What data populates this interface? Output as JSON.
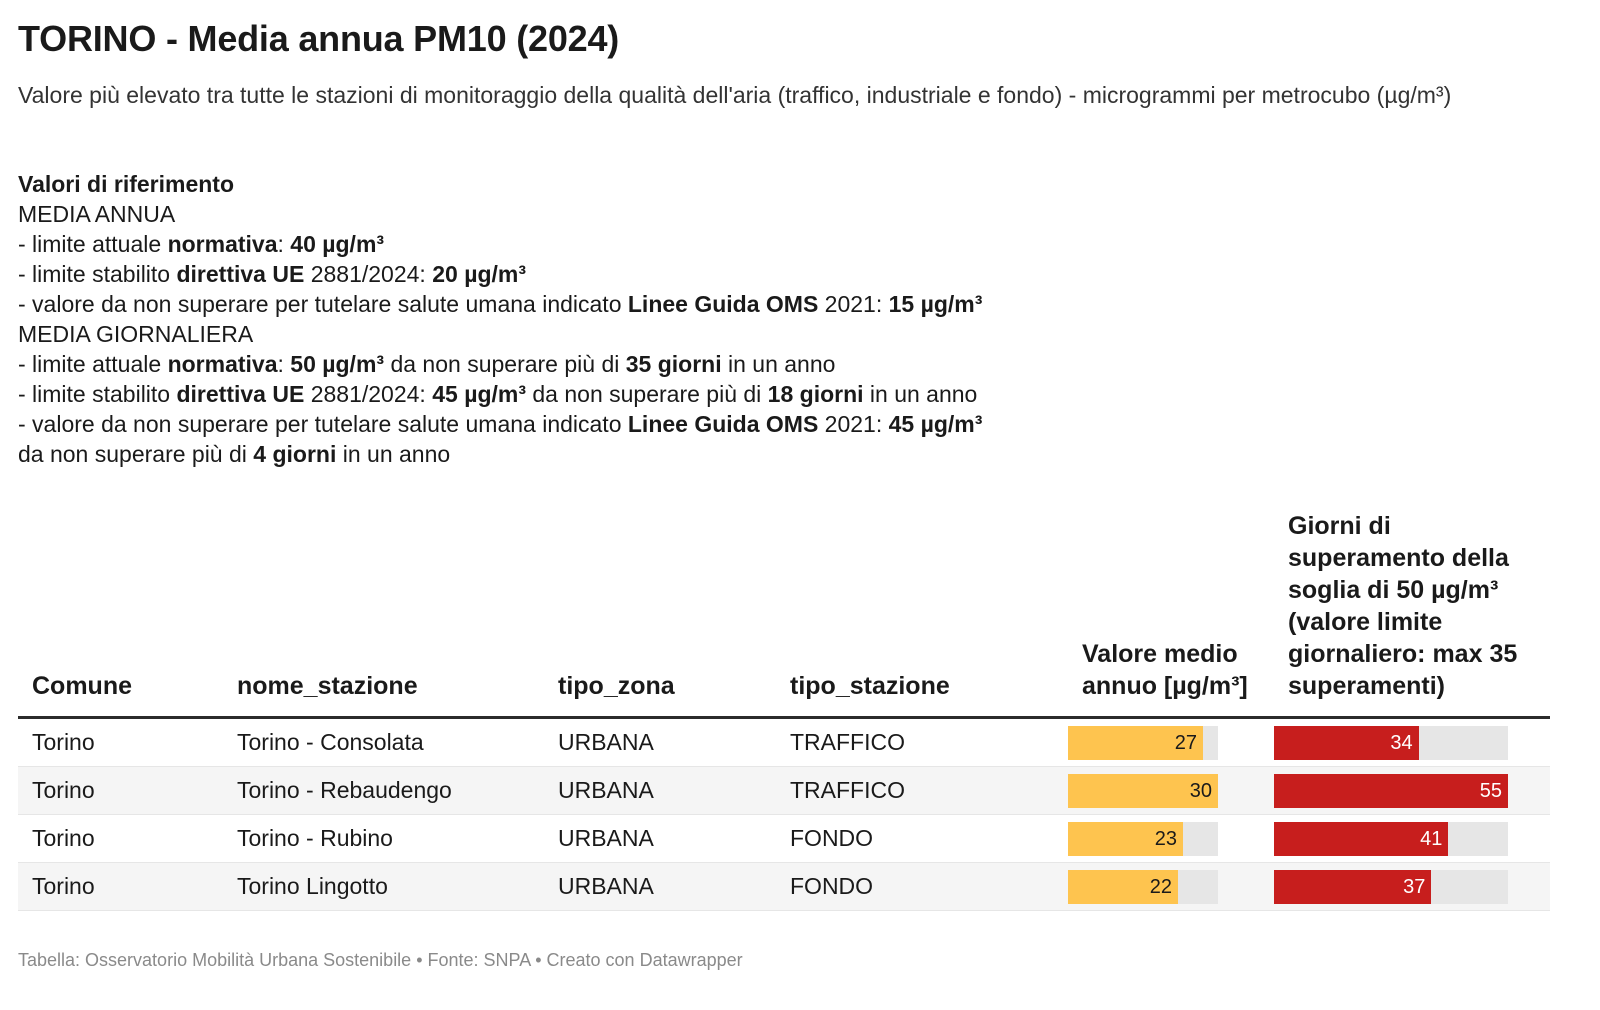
{
  "title": "TORINO - Media annua PM10 (2024)",
  "subtitle": "Valore più elevato tra tutte le stazioni di monitoraggio della qualità dell'aria (traffico, industriale e fondo) - microgrammi per metrocubo (µg/m³)",
  "reference": {
    "heading": "Valori di riferimento",
    "annual_heading": "MEDIA ANNUA",
    "annual_lines": [
      [
        {
          "t": "- limite attuale "
        },
        {
          "t": "normativa",
          "b": true
        },
        {
          "t": ": "
        },
        {
          "t": "40 µg/m³",
          "b": true
        }
      ],
      [
        {
          "t": "- limite stabilito "
        },
        {
          "t": "direttiva UE",
          "b": true
        },
        {
          "t": " 2881/2024: "
        },
        {
          "t": "20 µg/m³",
          "b": true
        }
      ],
      [
        {
          "t": "- valore da non superare per tutelare salute umana indicato "
        },
        {
          "t": "Linee Guida OMS",
          "b": true
        },
        {
          "t": " 2021: "
        },
        {
          "t": "15 µg/m³",
          "b": true
        }
      ]
    ],
    "daily_heading": "MEDIA GIORNALIERA",
    "daily_lines": [
      [
        {
          "t": "- limite attuale "
        },
        {
          "t": "normativa",
          "b": true
        },
        {
          "t": ": "
        },
        {
          "t": "50 µg/m³",
          "b": true
        },
        {
          "t": " da non superare più di "
        },
        {
          "t": "35 giorni",
          "b": true
        },
        {
          "t": " in un anno"
        }
      ],
      [
        {
          "t": "- limite stabilito "
        },
        {
          "t": "direttiva UE",
          "b": true
        },
        {
          "t": " 2881/2024: "
        },
        {
          "t": "45 µg/m³",
          "b": true
        },
        {
          "t": " da non superare più di "
        },
        {
          "t": "18 giorni",
          "b": true
        },
        {
          "t": " in un anno"
        }
      ],
      [
        {
          "t": "- valore da non superare per tutelare salute umana indicato "
        },
        {
          "t": "Linee Guida OMS",
          "b": true
        },
        {
          "t": " 2021: "
        },
        {
          "t": "45 µg/m³",
          "b": true
        }
      ],
      [
        {
          "t": "da non superare più di "
        },
        {
          "t": "4 giorni",
          "b": true
        },
        {
          "t": " in un anno"
        }
      ]
    ]
  },
  "colors": {
    "yellow_bar": "#fec44f",
    "red_bar": "#c71e1d",
    "track": "#e6e6e6"
  },
  "chart_data": {
    "type": "table",
    "columns": [
      "Comune",
      "nome_stazione",
      "tipo_zona",
      "tipo_stazione",
      "Valore medio annuo [µg/m³]",
      "Giorni di superamento della soglia di 50 µg/m³ (valore limite giornaliero: max 35 superamenti)"
    ],
    "rows": [
      {
        "comune": "Torino",
        "stazione": "Torino - Consolata",
        "zona": "URBANA",
        "tipo": "TRAFFICO",
        "valore": 27,
        "giorni": 34
      },
      {
        "comune": "Torino",
        "stazione": "Torino - Rebaudengo",
        "zona": "URBANA",
        "tipo": "TRAFFICO",
        "valore": 30,
        "giorni": 55
      },
      {
        "comune": "Torino",
        "stazione": "Torino - Rubino",
        "zona": "URBANA",
        "tipo": "FONDO",
        "valore": 23,
        "giorni": 41
      },
      {
        "comune": "Torino",
        "stazione": "Torino Lingotto",
        "zona": "URBANA",
        "tipo": "FONDO",
        "valore": 22,
        "giorni": 37
      }
    ],
    "valore_max": 30,
    "giorni_max": 55
  },
  "footer": "Tabella: Osservatorio Mobilità Urbana Sostenibile • Fonte: SNPA • Creato con Datawrapper"
}
